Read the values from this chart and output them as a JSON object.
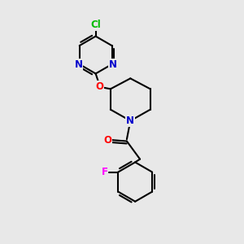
{
  "background_color": "#e8e8e8",
  "atom_colors": {
    "C": "#000000",
    "N": "#0000cc",
    "O": "#ff0000",
    "F": "#ff00ff",
    "Cl": "#00bb00"
  },
  "bond_color": "#000000",
  "bond_width": 1.5,
  "figsize": [
    3.0,
    3.0
  ],
  "dpi": 100,
  "font_size": 8.5
}
